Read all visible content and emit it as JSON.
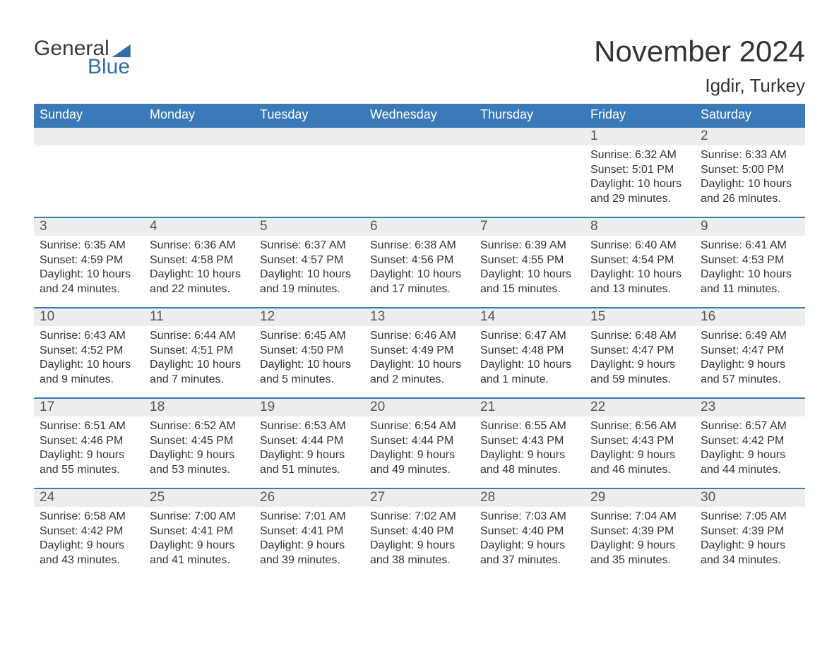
{
  "brand": {
    "general": "General",
    "blue": "Blue",
    "accent_color": "#2f6fa8"
  },
  "title": "November 2024",
  "location": "Igdir, Turkey",
  "header_bg": "#3a7ab8",
  "day_num_bg": "#ededed",
  "border_color": "#3a7ab8",
  "text_color": "#333333",
  "days_of_week": [
    "Sunday",
    "Monday",
    "Tuesday",
    "Wednesday",
    "Thursday",
    "Friday",
    "Saturday"
  ],
  "weeks": [
    [
      null,
      null,
      null,
      null,
      null,
      {
        "n": "1",
        "sunrise": "6:32 AM",
        "sunset": "5:01 PM",
        "daylight": "10 hours and 29 minutes."
      },
      {
        "n": "2",
        "sunrise": "6:33 AM",
        "sunset": "5:00 PM",
        "daylight": "10 hours and 26 minutes."
      }
    ],
    [
      {
        "n": "3",
        "sunrise": "6:35 AM",
        "sunset": "4:59 PM",
        "daylight": "10 hours and 24 minutes."
      },
      {
        "n": "4",
        "sunrise": "6:36 AM",
        "sunset": "4:58 PM",
        "daylight": "10 hours and 22 minutes."
      },
      {
        "n": "5",
        "sunrise": "6:37 AM",
        "sunset": "4:57 PM",
        "daylight": "10 hours and 19 minutes."
      },
      {
        "n": "6",
        "sunrise": "6:38 AM",
        "sunset": "4:56 PM",
        "daylight": "10 hours and 17 minutes."
      },
      {
        "n": "7",
        "sunrise": "6:39 AM",
        "sunset": "4:55 PM",
        "daylight": "10 hours and 15 minutes."
      },
      {
        "n": "8",
        "sunrise": "6:40 AM",
        "sunset": "4:54 PM",
        "daylight": "10 hours and 13 minutes."
      },
      {
        "n": "9",
        "sunrise": "6:41 AM",
        "sunset": "4:53 PM",
        "daylight": "10 hours and 11 minutes."
      }
    ],
    [
      {
        "n": "10",
        "sunrise": "6:43 AM",
        "sunset": "4:52 PM",
        "daylight": "10 hours and 9 minutes."
      },
      {
        "n": "11",
        "sunrise": "6:44 AM",
        "sunset": "4:51 PM",
        "daylight": "10 hours and 7 minutes."
      },
      {
        "n": "12",
        "sunrise": "6:45 AM",
        "sunset": "4:50 PM",
        "daylight": "10 hours and 5 minutes."
      },
      {
        "n": "13",
        "sunrise": "6:46 AM",
        "sunset": "4:49 PM",
        "daylight": "10 hours and 2 minutes."
      },
      {
        "n": "14",
        "sunrise": "6:47 AM",
        "sunset": "4:48 PM",
        "daylight": "10 hours and 1 minute."
      },
      {
        "n": "15",
        "sunrise": "6:48 AM",
        "sunset": "4:47 PM",
        "daylight": "9 hours and 59 minutes."
      },
      {
        "n": "16",
        "sunrise": "6:49 AM",
        "sunset": "4:47 PM",
        "daylight": "9 hours and 57 minutes."
      }
    ],
    [
      {
        "n": "17",
        "sunrise": "6:51 AM",
        "sunset": "4:46 PM",
        "daylight": "9 hours and 55 minutes."
      },
      {
        "n": "18",
        "sunrise": "6:52 AM",
        "sunset": "4:45 PM",
        "daylight": "9 hours and 53 minutes."
      },
      {
        "n": "19",
        "sunrise": "6:53 AM",
        "sunset": "4:44 PM",
        "daylight": "9 hours and 51 minutes."
      },
      {
        "n": "20",
        "sunrise": "6:54 AM",
        "sunset": "4:44 PM",
        "daylight": "9 hours and 49 minutes."
      },
      {
        "n": "21",
        "sunrise": "6:55 AM",
        "sunset": "4:43 PM",
        "daylight": "9 hours and 48 minutes."
      },
      {
        "n": "22",
        "sunrise": "6:56 AM",
        "sunset": "4:43 PM",
        "daylight": "9 hours and 46 minutes."
      },
      {
        "n": "23",
        "sunrise": "6:57 AM",
        "sunset": "4:42 PM",
        "daylight": "9 hours and 44 minutes."
      }
    ],
    [
      {
        "n": "24",
        "sunrise": "6:58 AM",
        "sunset": "4:42 PM",
        "daylight": "9 hours and 43 minutes."
      },
      {
        "n": "25",
        "sunrise": "7:00 AM",
        "sunset": "4:41 PM",
        "daylight": "9 hours and 41 minutes."
      },
      {
        "n": "26",
        "sunrise": "7:01 AM",
        "sunset": "4:41 PM",
        "daylight": "9 hours and 39 minutes."
      },
      {
        "n": "27",
        "sunrise": "7:02 AM",
        "sunset": "4:40 PM",
        "daylight": "9 hours and 38 minutes."
      },
      {
        "n": "28",
        "sunrise": "7:03 AM",
        "sunset": "4:40 PM",
        "daylight": "9 hours and 37 minutes."
      },
      {
        "n": "29",
        "sunrise": "7:04 AM",
        "sunset": "4:39 PM",
        "daylight": "9 hours and 35 minutes."
      },
      {
        "n": "30",
        "sunrise": "7:05 AM",
        "sunset": "4:39 PM",
        "daylight": "9 hours and 34 minutes."
      }
    ]
  ],
  "labels": {
    "sunrise": "Sunrise:",
    "sunset": "Sunset:",
    "daylight": "Daylight:"
  }
}
